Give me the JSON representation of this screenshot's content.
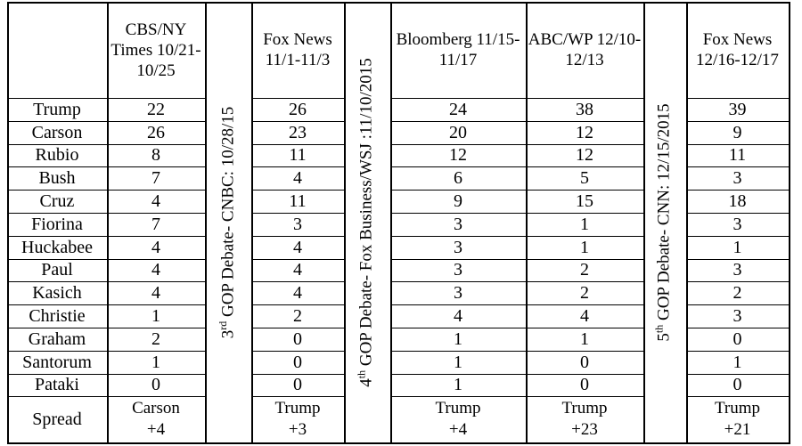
{
  "header": {
    "col1": "CBS/NY Times 10/21-10/25",
    "col2": "Fox News 11/1-11/3",
    "col3": "Bloomberg 11/15-11/17",
    "col4": "ABC/WP 12/10-12/13",
    "col5": "Fox News 12/16-12/17"
  },
  "debates": {
    "d1_num": "3",
    "d1_sup": "rd",
    "d1_text": " GOP Debate- CNBC: 10/28/15",
    "d2_num": "4",
    "d2_sup": "th",
    "d2_text": " GOP Debate- Fox Business/WSJ :11/10/2015",
    "d3_num": "5",
    "d3_sup": "th",
    "d3_text": " GOP Debate- CNN: 12/15/2015"
  },
  "rows": [
    {
      "name": "Trump",
      "values": [
        "22",
        "26",
        "24",
        "38",
        "39"
      ]
    },
    {
      "name": "Carson",
      "values": [
        "26",
        "23",
        "20",
        "12",
        "9"
      ]
    },
    {
      "name": "Rubio",
      "values": [
        "8",
        "11",
        "12",
        "12",
        "11"
      ]
    },
    {
      "name": "Bush",
      "values": [
        "7",
        "4",
        "6",
        "5",
        "3"
      ]
    },
    {
      "name": "Cruz",
      "values": [
        "4",
        "11",
        "9",
        "15",
        "18"
      ]
    },
    {
      "name": "Fiorina",
      "values": [
        "7",
        "3",
        "3",
        "1",
        "3"
      ]
    },
    {
      "name": "Huckabee",
      "values": [
        "4",
        "4",
        "3",
        "1",
        "1"
      ]
    },
    {
      "name": "Paul",
      "values": [
        "4",
        "4",
        "3",
        "2",
        "3"
      ]
    },
    {
      "name": "Kasich",
      "values": [
        "4",
        "4",
        "3",
        "2",
        "2"
      ]
    },
    {
      "name": "Christie",
      "values": [
        "1",
        "2",
        "4",
        "4",
        "3"
      ]
    },
    {
      "name": "Graham",
      "values": [
        "2",
        "0",
        "1",
        "1",
        "0"
      ]
    },
    {
      "name": "Santorum",
      "values": [
        "1",
        "0",
        "1",
        "0",
        "1"
      ]
    },
    {
      "name": "Pataki",
      "values": [
        "0",
        "0",
        "1",
        "0",
        "0"
      ]
    }
  ],
  "spread": {
    "label": "Spread",
    "values": [
      {
        "leader": "Carson",
        "margin": "+4"
      },
      {
        "leader": "Trump",
        "margin": "+3"
      },
      {
        "leader": "Trump",
        "margin": "+4"
      },
      {
        "leader": "Trump",
        "margin": "+23"
      },
      {
        "leader": "Trump",
        "margin": "+21"
      }
    ]
  }
}
